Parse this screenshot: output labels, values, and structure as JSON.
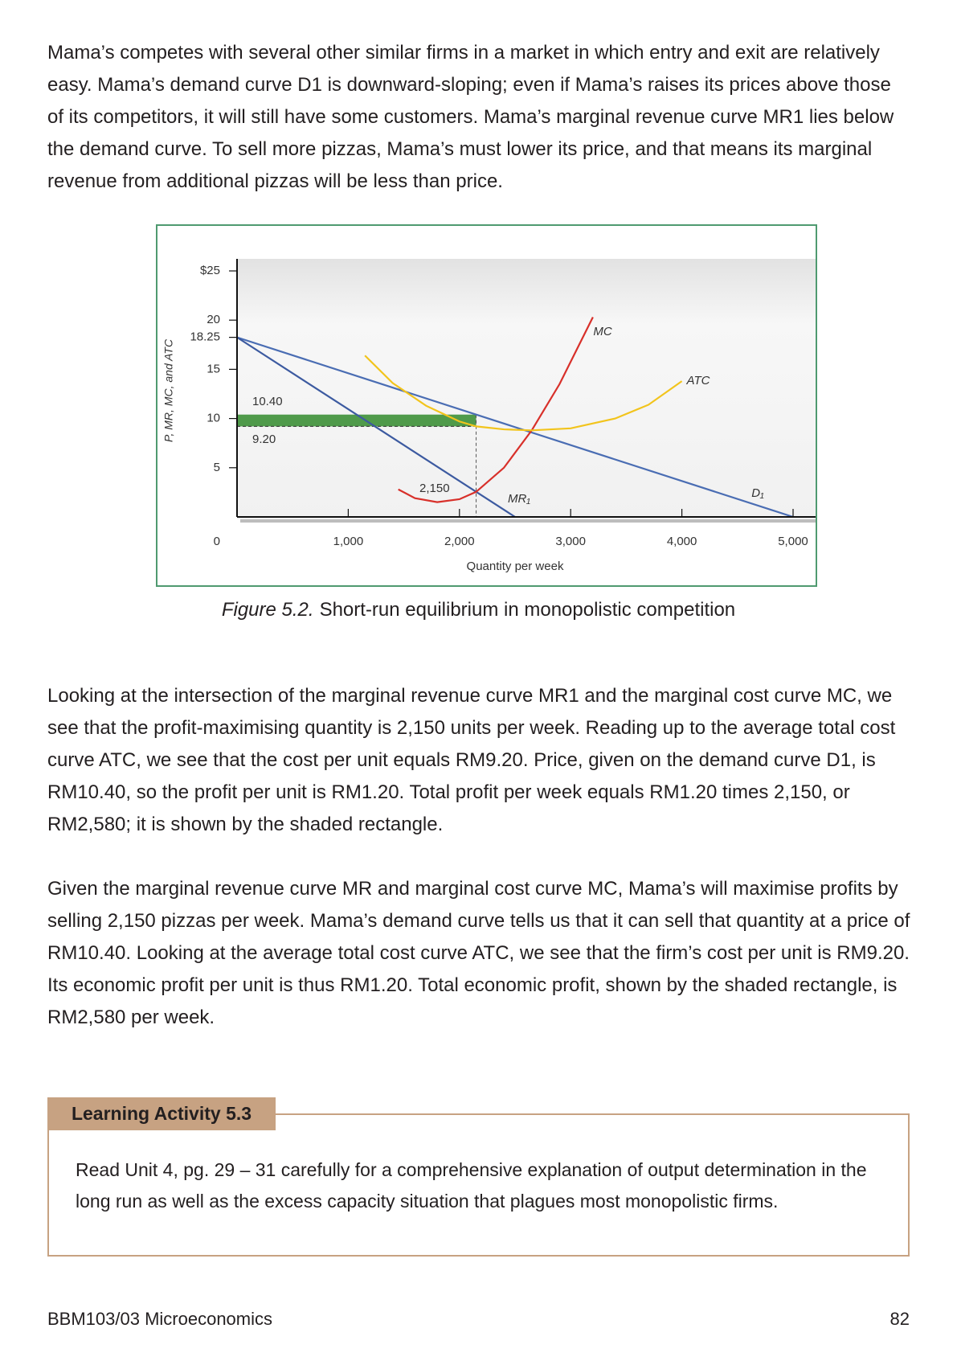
{
  "paragraphs": [
    "Mama’s competes with several other similar firms in a market in which entry and exit are relatively easy. Mama’s demand curve D1 is downward-sloping; even if Mama’s raises its prices above those of its competitors, it will still have some customers. Mama’s marginal revenue curve MR1 lies below the demand curve. To sell more pizzas, Mama’s must lower its price, and that means its marginal revenue from additional pizzas will be less than price.",
    "Looking at the intersection of the marginal revenue curve MR1 and the marginal cost curve MC, we see that the profit-maximising quantity is 2,150 units per week. Reading up to the average total cost curve ATC, we see that the cost per unit equals RM9.20. Price, given on the demand curve D1, is RM10.40, so the profit per unit is RM1.20. Total profit per week equals RM1.20 times 2,150, or RM2,580; it is shown by the shaded rectangle.",
    "Given the marginal revenue curve MR and marginal cost curve MC, Mama’s will maximise profits by selling 2,150 pizzas per week. Mama’s demand curve tells us that it can sell that quantity at a price of RM10.40. Looking at the average total cost curve ATC, we see that the firm’s cost per unit is RM9.20. Its economic profit per unit is thus RM1.20. Total economic profit, shown by the shaded rectangle, is RM2,580 per week."
  ],
  "figure": {
    "chart_data": {
      "type": "line",
      "y_label": "P, MR, MC, and ATC",
      "x_label": "Quantity per week",
      "xlim": [
        0,
        5000
      ],
      "ylim": [
        0,
        25
      ],
      "yticks": [
        {
          "value": 25,
          "label": "$25"
        },
        20,
        18.25,
        15,
        10,
        5,
        0
      ],
      "xticks": [
        {
          "value": 1000,
          "label": "1,000"
        },
        {
          "value": 2000,
          "label": "2,000"
        },
        {
          "value": 3000,
          "label": "3,000"
        },
        {
          "value": 4000,
          "label": "4,000"
        },
        {
          "value": 5000,
          "label": "5,000"
        }
      ],
      "series": [
        {
          "name": "D₁",
          "color": "#4a6db3",
          "x": [
            0,
            5000
          ],
          "y": [
            18.25,
            0
          ]
        },
        {
          "name": "MR₁",
          "color": "#3c5aa0",
          "x": [
            0,
            2500
          ],
          "y": [
            18.25,
            0
          ]
        },
        {
          "name": "MC",
          "color": "#d8302a",
          "x": [
            1450,
            1600,
            1800,
            2000,
            2150,
            2400,
            2650,
            2900,
            3200
          ],
          "y": [
            2.8,
            1.9,
            1.5,
            1.8,
            2.55,
            5.0,
            8.8,
            13.5,
            20.3
          ]
        },
        {
          "name": "ATC",
          "color": "#f2c41c",
          "x": [
            1150,
            1400,
            1700,
            2000,
            2150,
            2400,
            2650,
            3000,
            3400,
            3700,
            4000
          ],
          "y": [
            16.4,
            13.6,
            11.3,
            9.7,
            9.2,
            8.9,
            8.8,
            9.0,
            10.0,
            11.4,
            13.8
          ]
        }
      ],
      "annotations": {
        "price": {
          "value": 10.4,
          "label": "10.40"
        },
        "cost": {
          "value": 9.2,
          "label": "9.20"
        },
        "quantity": {
          "value": 2150,
          "label": "2,150"
        }
      },
      "shade_color": "#4f9a4a"
    },
    "caption": {
      "label": "Figure 5.2.",
      "text": "Short-run equilibrium in monopolistic competition"
    }
  },
  "activity": {
    "title": "Learning Activity 5.3",
    "text": "Read Unit 4, pg. 29 – 31 carefully for a comprehensive explanation of output determination in the long run as well as the excess capacity situation that plagues most monopolistic firms."
  },
  "footer": {
    "course": "BBM103/03 Microeconomics",
    "page": "82"
  }
}
